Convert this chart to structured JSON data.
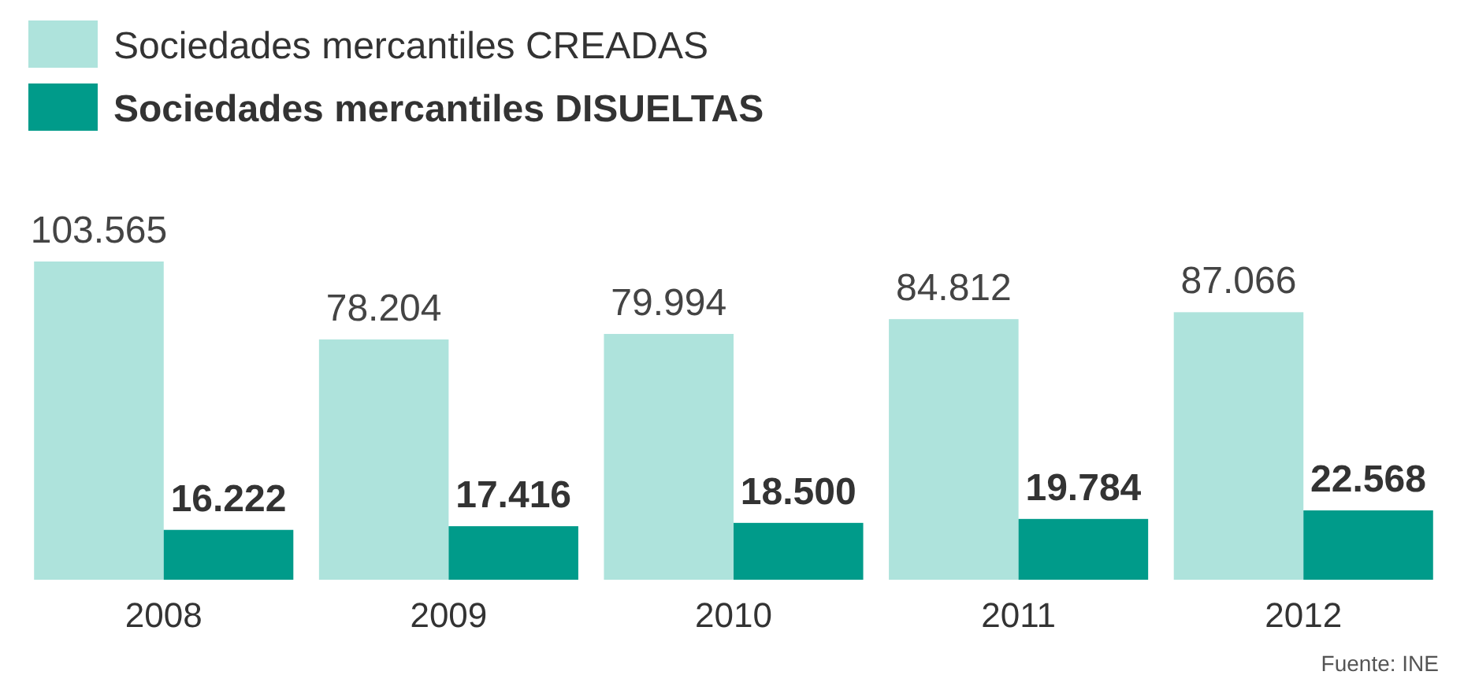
{
  "chart_data": {
    "type": "bar",
    "categories": [
      "2008",
      "2009",
      "2010",
      "2011",
      "2012"
    ],
    "series": [
      {
        "name": "Sociedades mercantiles CREADAS",
        "color": "#aee3dc",
        "values": [
          103565,
          78204,
          79994,
          84812,
          87066
        ],
        "value_labels": [
          "103.565",
          "78.204",
          "79.994",
          "84.812",
          "87.066"
        ]
      },
      {
        "name": "Sociedades mercantiles DISUELTAS",
        "color": "#009b8a",
        "values": [
          16222,
          17416,
          18500,
          19784,
          22568
        ],
        "value_labels": [
          "16.222",
          "17.416",
          "18.500",
          "19.784",
          "22.568"
        ]
      }
    ],
    "legend": "top left",
    "annotations": [
      "Fuente: INE"
    ]
  }
}
